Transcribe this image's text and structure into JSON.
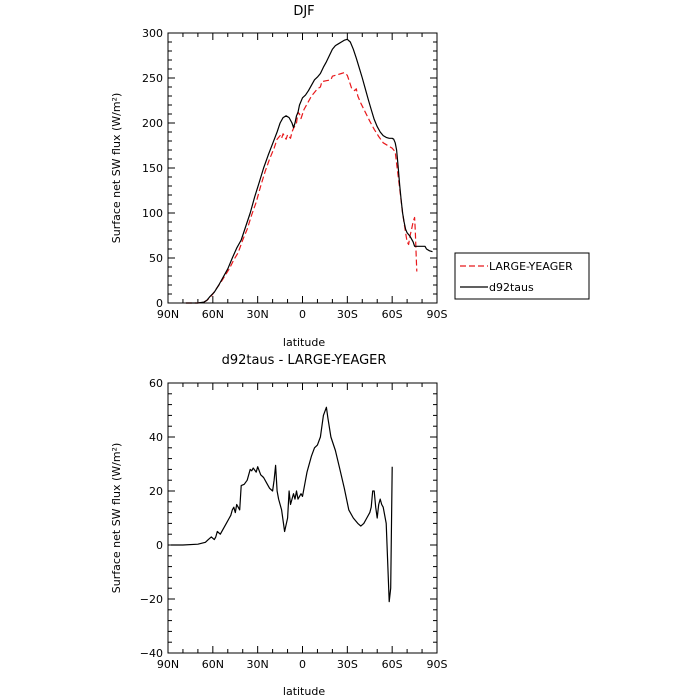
{
  "chart_data": [
    {
      "type": "line",
      "title": "DJF",
      "xlabel": "latitude",
      "ylabel": "Surface net SW flux (W/m²)",
      "xlim": [
        -90,
        90
      ],
      "ylim": [
        0,
        300
      ],
      "x_ticks": [
        -90,
        -60,
        -30,
        0,
        30,
        60,
        90
      ],
      "x_tick_labels": [
        "90N",
        "60N",
        "30N",
        "0",
        "30S",
        "60S",
        "90S"
      ],
      "y_ticks": [
        0,
        50,
        100,
        150,
        200,
        250,
        300
      ],
      "y_tick_labels": [
        "0",
        "50",
        "100",
        "150",
        "200",
        "250",
        "300"
      ],
      "legend_position": "outside-right-bottom",
      "series": [
        {
          "name": "LARGE-YEAGER",
          "color": "#e8191c",
          "dash": "dashed",
          "points": [
            [
              -78,
              0
            ],
            [
              -70,
              0
            ],
            [
              -66,
              1
            ],
            [
              -64,
              3
            ],
            [
              -62,
              6
            ],
            [
              -60,
              10
            ],
            [
              -58,
              15
            ],
            [
              -55,
              22
            ],
            [
              -52,
              30
            ],
            [
              -49,
              38
            ],
            [
              -46,
              48
            ],
            [
              -43,
              56
            ],
            [
              -40,
              70
            ],
            [
              -37,
              82
            ],
            [
              -34,
              98
            ],
            [
              -31,
              112
            ],
            [
              -28,
              130
            ],
            [
              -25,
              146
            ],
            [
              -22,
              160
            ],
            [
              -19,
              172
            ],
            [
              -17,
              182
            ],
            [
              -15,
              186
            ],
            [
              -14,
              183
            ],
            [
              -13,
              188
            ],
            [
              -12,
              185
            ],
            [
              -11,
              182
            ],
            [
              -10,
              187
            ],
            [
              -8,
              183
            ],
            [
              -7,
              190
            ],
            [
              -6,
              194
            ],
            [
              -4,
              200
            ],
            [
              -3,
              212
            ],
            [
              -2,
              210
            ],
            [
              -1,
              205
            ],
            [
              0,
              210
            ],
            [
              1,
              215
            ],
            [
              2,
              218
            ],
            [
              4,
              224
            ],
            [
              6,
              230
            ],
            [
              8,
              234
            ],
            [
              10,
              238
            ],
            [
              12,
              240
            ],
            [
              13,
              246
            ],
            [
              16,
              247
            ],
            [
              19,
              248
            ],
            [
              20,
              252
            ],
            [
              22,
              253
            ],
            [
              24,
              254
            ],
            [
              26,
              255
            ],
            [
              28,
              256
            ],
            [
              30,
              253
            ],
            [
              31,
              248
            ],
            [
              32,
              243
            ],
            [
              33,
              238
            ],
            [
              35,
              236
            ],
            [
              36,
              238
            ],
            [
              37,
              230
            ],
            [
              39,
              222
            ],
            [
              42,
              212
            ],
            [
              45,
              202
            ],
            [
              48,
              193
            ],
            [
              51,
              185
            ],
            [
              54,
              178
            ],
            [
              57,
              175
            ],
            [
              60,
              172
            ],
            [
              62,
              168
            ],
            [
              63,
              155
            ],
            [
              65,
              128
            ],
            [
              67,
              100
            ],
            [
              69,
              78
            ],
            [
              70,
              68
            ],
            [
              71,
              65
            ],
            [
              72,
              75
            ],
            [
              73,
              82
            ],
            [
              74,
              90
            ],
            [
              75,
              95
            ],
            [
              75.5,
              80
            ],
            [
              76,
              55
            ],
            [
              76.5,
              35
            ]
          ]
        },
        {
          "name": "d92taus",
          "color": "#000000",
          "dash": "solid",
          "points": [
            [
              -78,
              0
            ],
            [
              -70,
              0
            ],
            [
              -66,
              1
            ],
            [
              -64,
              3
            ],
            [
              -62,
              7
            ],
            [
              -59,
              12
            ],
            [
              -56,
              20
            ],
            [
              -53,
              29
            ],
            [
              -50,
              38
            ],
            [
              -47,
              50
            ],
            [
              -44,
              61
            ],
            [
              -41,
              70
            ],
            [
              -38,
              85
            ],
            [
              -35,
              100
            ],
            [
              -32,
              118
            ],
            [
              -29,
              134
            ],
            [
              -26,
              150
            ],
            [
              -23,
              164
            ],
            [
              -20,
              177
            ],
            [
              -17,
              190
            ],
            [
              -15,
              200
            ],
            [
              -13,
              206
            ],
            [
              -11,
              208
            ],
            [
              -9,
              206
            ],
            [
              -7,
              200
            ],
            [
              -6,
              195
            ],
            [
              -5,
              200
            ],
            [
              -4,
              208
            ],
            [
              -3,
              212
            ],
            [
              -2,
              220
            ],
            [
              0,
              228
            ],
            [
              2,
              231
            ],
            [
              4,
              236
            ],
            [
              6,
              242
            ],
            [
              8,
              248
            ],
            [
              10,
              251
            ],
            [
              12,
              255
            ],
            [
              14,
              262
            ],
            [
              16,
              268
            ],
            [
              18,
              275
            ],
            [
              20,
              282
            ],
            [
              22,
              286
            ],
            [
              24,
              288
            ],
            [
              26,
              290
            ],
            [
              28,
              292
            ],
            [
              30,
              293
            ],
            [
              32,
              290
            ],
            [
              34,
              282
            ],
            [
              36,
              272
            ],
            [
              38,
              261
            ],
            [
              40,
              250
            ],
            [
              42,
              238
            ],
            [
              44,
              226
            ],
            [
              46,
              215
            ],
            [
              48,
              204
            ],
            [
              50,
              196
            ],
            [
              52,
              190
            ],
            [
              54,
              186
            ],
            [
              56,
              184
            ],
            [
              58,
              183
            ],
            [
              60,
              183
            ],
            [
              61,
              182
            ],
            [
              62,
              178
            ],
            [
              63,
              170
            ],
            [
              64,
              152
            ],
            [
              65,
              132
            ],
            [
              66,
              115
            ],
            [
              67,
              100
            ],
            [
              68,
              90
            ],
            [
              69,
              82
            ],
            [
              70,
              78
            ],
            [
              72,
              74
            ],
            [
              74,
              68
            ],
            [
              75,
              63
            ],
            [
              78,
              63
            ],
            [
              80,
              63
            ],
            [
              82,
              63
            ],
            [
              83,
              60
            ],
            [
              85,
              58
            ],
            [
              87,
              57
            ]
          ]
        }
      ]
    },
    {
      "type": "line",
      "title": "d92taus - LARGE-YEAGER",
      "xlabel": "latitude",
      "ylabel": "Surface net SW flux (W/m²)",
      "xlim": [
        -90,
        90
      ],
      "ylim": [
        -40,
        60
      ],
      "x_ticks": [
        -90,
        -60,
        -30,
        0,
        30,
        60,
        90
      ],
      "x_tick_labels": [
        "90N",
        "60N",
        "30N",
        "0",
        "30S",
        "60S",
        "90S"
      ],
      "y_ticks": [
        -40,
        -20,
        0,
        20,
        40,
        60
      ],
      "y_tick_labels": [
        "−40",
        "−20",
        "0",
        "20",
        "40",
        "60"
      ],
      "series": [
        {
          "color": "#000000",
          "dash": "solid",
          "points": [
            [
              -88,
              0
            ],
            [
              -80,
              0
            ],
            [
              -70,
              0.3
            ],
            [
              -65,
              1
            ],
            [
              -63,
              2
            ],
            [
              -61,
              3
            ],
            [
              -59,
              2
            ],
            [
              -58,
              3
            ],
            [
              -57,
              5
            ],
            [
              -55,
              4
            ],
            [
              -53,
              6
            ],
            [
              -51,
              8
            ],
            [
              -49,
              10
            ],
            [
              -48,
              11
            ],
            [
              -47,
              13
            ],
            [
              -46,
              14
            ],
            [
              -45,
              12
            ],
            [
              -44,
              15
            ],
            [
              -43,
              14
            ],
            [
              -42,
              13
            ],
            [
              -41,
              22
            ],
            [
              -39,
              22.5
            ],
            [
              -37,
              24
            ],
            [
              -35,
              28
            ],
            [
              -34,
              27.5
            ],
            [
              -33,
              28.5
            ],
            [
              -31,
              27
            ],
            [
              -30,
              29
            ],
            [
              -28,
              26
            ],
            [
              -26,
              25
            ],
            [
              -24,
              23
            ],
            [
              -22,
              21
            ],
            [
              -20,
              20
            ],
            [
              -19,
              24
            ],
            [
              -18,
              29.5
            ],
            [
              -17,
              20
            ],
            [
              -16,
              17
            ],
            [
              -15,
              15
            ],
            [
              -14,
              13
            ],
            [
              -12,
              5
            ],
            [
              -10,
              10
            ],
            [
              -9,
              20
            ],
            [
              -8,
              15
            ],
            [
              -7,
              17
            ],
            [
              -6,
              19
            ],
            [
              -5,
              17
            ],
            [
              -4,
              20
            ],
            [
              -3,
              17
            ],
            [
              -2,
              18
            ],
            [
              -1,
              19
            ],
            [
              0,
              18
            ],
            [
              1,
              21
            ],
            [
              2,
              24
            ],
            [
              3,
              27
            ],
            [
              4,
              29
            ],
            [
              6,
              33
            ],
            [
              8,
              36
            ],
            [
              10,
              37
            ],
            [
              12,
              40
            ],
            [
              13,
              44
            ],
            [
              14,
              48
            ],
            [
              16,
              51
            ],
            [
              17,
              47
            ],
            [
              19,
              40
            ],
            [
              22,
              35
            ],
            [
              25,
              28
            ],
            [
              28,
              21
            ],
            [
              31,
              13
            ],
            [
              34,
              10
            ],
            [
              37,
              8
            ],
            [
              39,
              7
            ],
            [
              41,
              8
            ],
            [
              43,
              10
            ],
            [
              45,
              12
            ],
            [
              46,
              14
            ],
            [
              47,
              20
            ],
            [
              48,
              20
            ],
            [
              49,
              14
            ],
            [
              50,
              10
            ],
            [
              51,
              15
            ],
            [
              52,
              17
            ],
            [
              53,
              15
            ],
            [
              54,
              14
            ],
            [
              56,
              8
            ],
            [
              58,
              -21
            ],
            [
              59,
              -16
            ],
            [
              60,
              29
            ]
          ]
        }
      ]
    }
  ]
}
